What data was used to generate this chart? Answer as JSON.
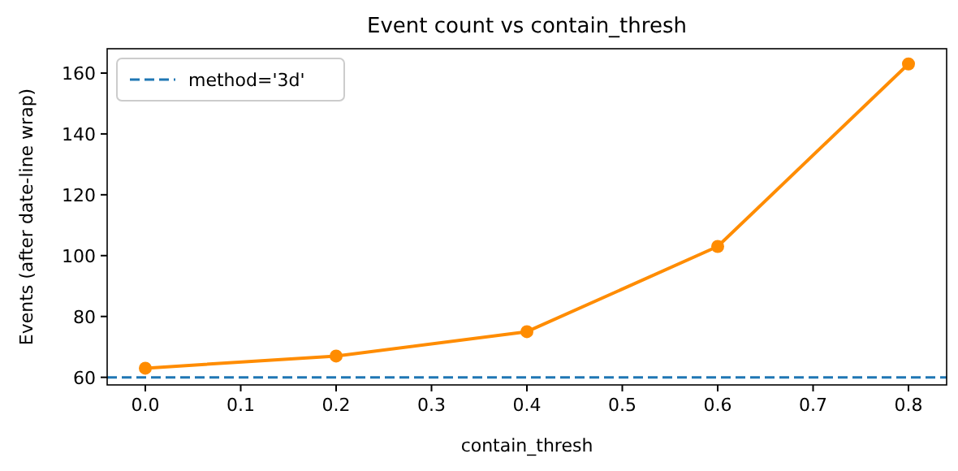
{
  "chart_data": {
    "type": "line",
    "title": "Event count vs contain_thresh",
    "xlabel": "contain_thresh",
    "ylabel": "Events (after date-line wrap)",
    "x": [
      0.0,
      0.2,
      0.4,
      0.6,
      0.8
    ],
    "series": [
      {
        "color": "#ff8c00",
        "values": [
          63,
          67,
          75,
          103,
          163
        ]
      }
    ],
    "marker": "circle",
    "line_style": "solid",
    "xlim": [
      -0.04,
      0.84
    ],
    "xticks": [
      {
        "value": 0,
        "label": "0.0"
      },
      {
        "value": 0.1,
        "label": "0.1"
      },
      {
        "value": 0.2,
        "label": "0.2"
      },
      {
        "value": 0.3,
        "label": "0.3"
      },
      {
        "value": 0.4,
        "label": "0.4"
      },
      {
        "value": 0.5,
        "label": "0.5"
      },
      {
        "value": 0.6,
        "label": "0.6"
      },
      {
        "value": 0.7,
        "label": "0.7"
      },
      {
        "value": 0.8,
        "label": "0.8"
      }
    ],
    "ylim": [
      57.5,
      168
    ],
    "yticks": [
      60,
      80,
      100,
      120,
      140,
      160
    ],
    "ref_lines": [
      {
        "axis": "y",
        "value": 60,
        "label": "method='3d'",
        "color": "#1f77b4",
        "line_style": "dashed"
      }
    ],
    "legend": "top left",
    "grid": false
  }
}
